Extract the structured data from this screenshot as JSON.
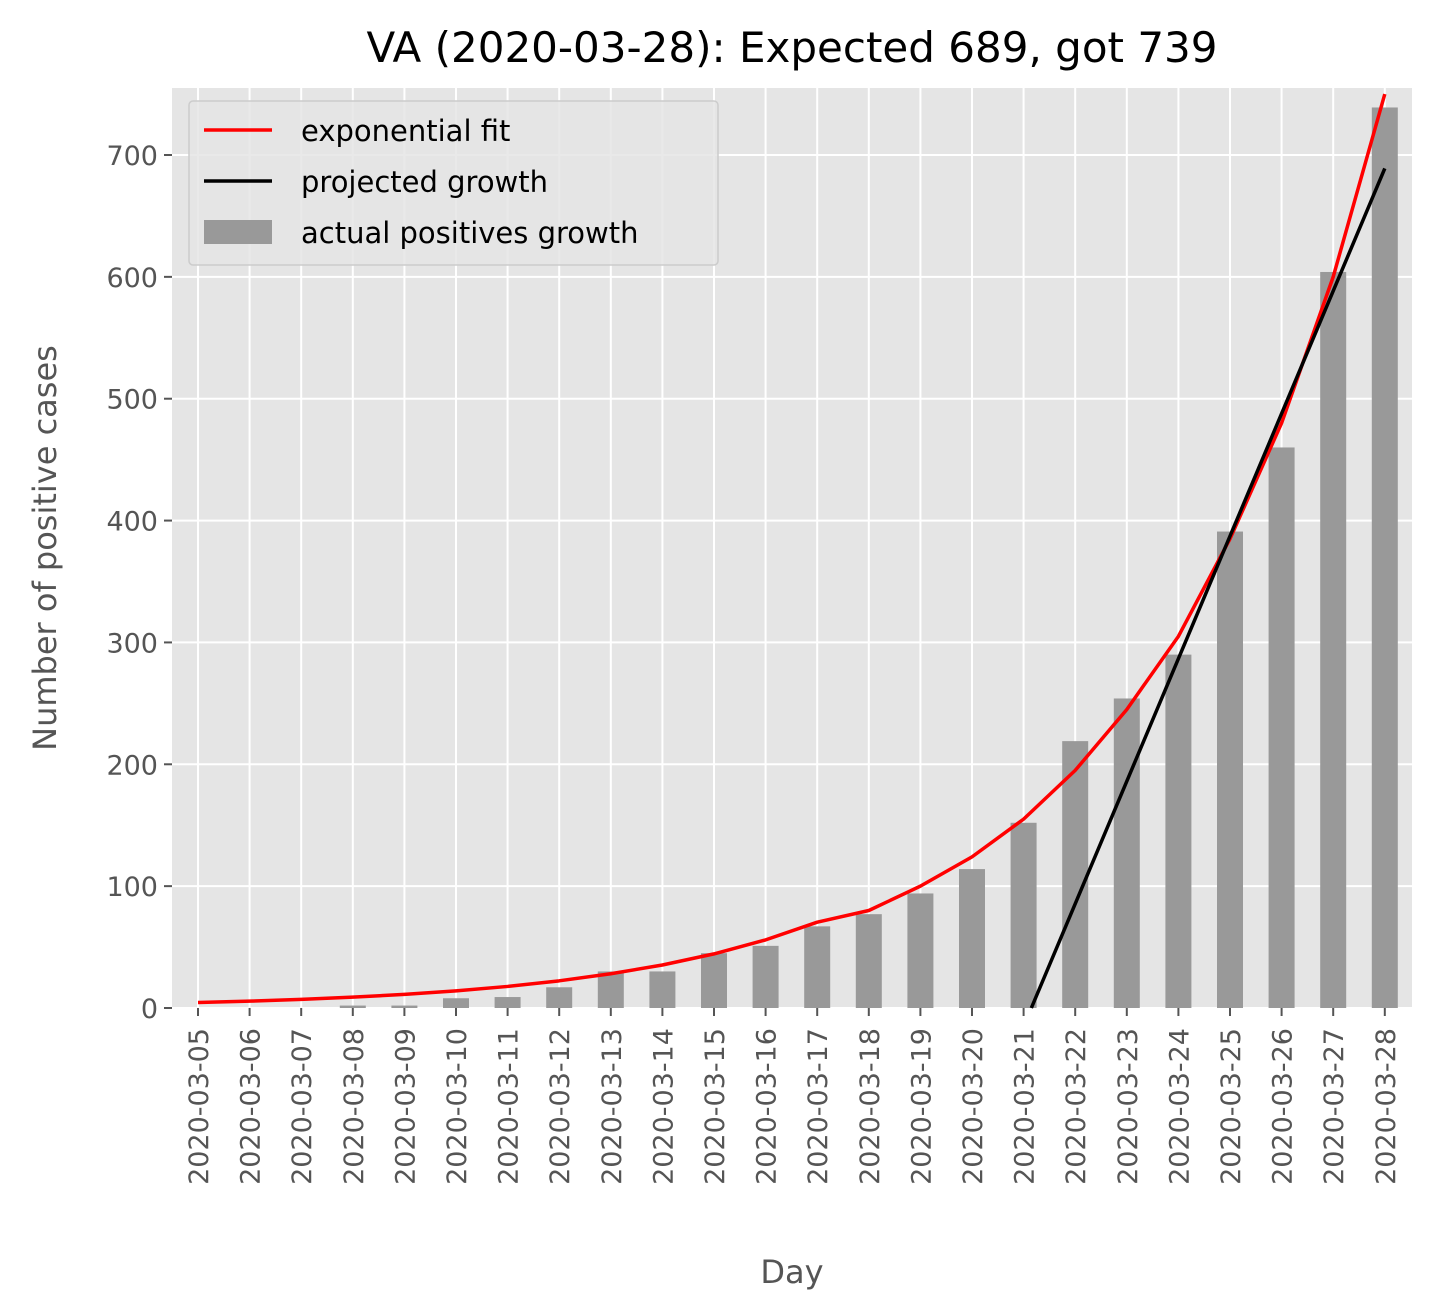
{
  "chart_data": {
    "type": "bar",
    "title": "VA (2020-03-28): Expected 689, got 739",
    "xlabel": "Day",
    "ylabel": "Number of positive cases",
    "ylim": [
      0,
      755
    ],
    "yticks": [
      "0",
      "100",
      "200",
      "300",
      "400",
      "500",
      "600",
      "700"
    ],
    "ytick_values": [
      0,
      100,
      200,
      300,
      400,
      500,
      600,
      700
    ],
    "grid": true,
    "legend_position": "top-left",
    "categories": [
      "2020-03-05",
      "2020-03-06",
      "2020-03-07",
      "2020-03-08",
      "2020-03-09",
      "2020-03-10",
      "2020-03-11",
      "2020-03-12",
      "2020-03-13",
      "2020-03-14",
      "2020-03-15",
      "2020-03-16",
      "2020-03-17",
      "2020-03-18",
      "2020-03-19",
      "2020-03-20",
      "2020-03-21",
      "2020-03-22",
      "2020-03-23",
      "2020-03-24",
      "2020-03-25",
      "2020-03-26",
      "2020-03-27",
      "2020-03-28"
    ],
    "series": [
      {
        "name": "actual positives growth",
        "kind": "bar",
        "color": "#999999",
        "values": [
          0,
          0,
          0,
          2,
          2,
          8,
          9,
          17,
          30,
          30,
          45,
          51,
          67,
          77,
          94,
          114,
          152,
          219,
          254,
          290,
          391,
          460,
          604,
          739
        ]
      },
      {
        "name": "exponential fit",
        "kind": "line",
        "color": "#ff0000",
        "values": [
          4.5,
          5.6,
          7.1,
          8.9,
          11.2,
          14.1,
          17.7,
          22.3,
          28.1,
          35.3,
          44.4,
          55.9,
          70.4,
          80,
          100,
          124,
          155,
          195,
          245,
          305,
          385,
          480,
          600,
          750
        ]
      },
      {
        "name": "projected growth",
        "kind": "line",
        "color": "#000000",
        "start_index": 16.15,
        "start_value": 0,
        "end_index": 23,
        "end_value": 689
      }
    ]
  }
}
